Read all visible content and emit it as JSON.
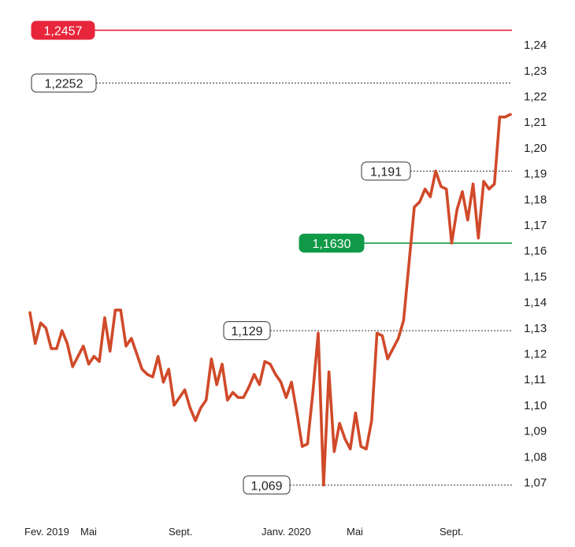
{
  "chart_data": {
    "type": "line",
    "title": "",
    "xlabel": "",
    "ylabel": "",
    "ylim": [
      1.063,
      1.25
    ],
    "y_ticks": [
      "1,07",
      "1,08",
      "1,09",
      "1,10",
      "1,11",
      "1,12",
      "1,13",
      "1,14",
      "1,15",
      "1,16",
      "1,17",
      "1,18",
      "1,19",
      "1,20",
      "1,21",
      "1,22",
      "1,23",
      "1,24"
    ],
    "x_ticks": [
      "Fev. 2019",
      "Mai",
      "Sept.",
      "Janv. 2020",
      "Mai",
      "Sept."
    ],
    "grid": false,
    "series": [
      {
        "color": "#d04a2a",
        "values": [
          1.136,
          1.124,
          1.132,
          1.13,
          1.122,
          1.122,
          1.129,
          1.124,
          1.115,
          1.119,
          1.123,
          1.116,
          1.119,
          1.117,
          1.134,
          1.121,
          1.137,
          1.137,
          1.123,
          1.126,
          1.12,
          1.114,
          1.112,
          1.111,
          1.119,
          1.109,
          1.114,
          1.1,
          1.103,
          1.106,
          1.099,
          1.094,
          1.099,
          1.102,
          1.118,
          1.108,
          1.116,
          1.102,
          1.105,
          1.103,
          1.103,
          1.107,
          1.112,
          1.108,
          1.117,
          1.116,
          1.112,
          1.109,
          1.103,
          1.109,
          1.097,
          1.084,
          1.085,
          1.105,
          1.128,
          1.069,
          1.113,
          1.082,
          1.093,
          1.087,
          1.083,
          1.097,
          1.084,
          1.083,
          1.094,
          1.128,
          1.127,
          1.118,
          1.122,
          1.126,
          1.133,
          1.155,
          1.177,
          1.179,
          1.184,
          1.181,
          1.191,
          1.185,
          1.184,
          1.163,
          1.176,
          1.183,
          1.172,
          1.186,
          1.165,
          1.187,
          1.184,
          1.186,
          1.212,
          1.212,
          1.213
        ]
      }
    ],
    "reference_lines": [
      {
        "label": "1,2457",
        "value": 1.2457,
        "color": "#e8263b",
        "style": "solid"
      },
      {
        "label": "1,2252",
        "value": 1.2252,
        "color": "#333333",
        "style": "dotted"
      },
      {
        "label": "1,191",
        "value": 1.191,
        "color": "#333333",
        "style": "dotted"
      },
      {
        "label": "1,1630",
        "value": 1.163,
        "color": "#109a48",
        "style": "solid"
      },
      {
        "label": "1,129",
        "value": 1.129,
        "color": "#333333",
        "style": "dotted"
      },
      {
        "label": "1,069",
        "value": 1.069,
        "color": "#333333",
        "style": "dotted"
      }
    ]
  }
}
